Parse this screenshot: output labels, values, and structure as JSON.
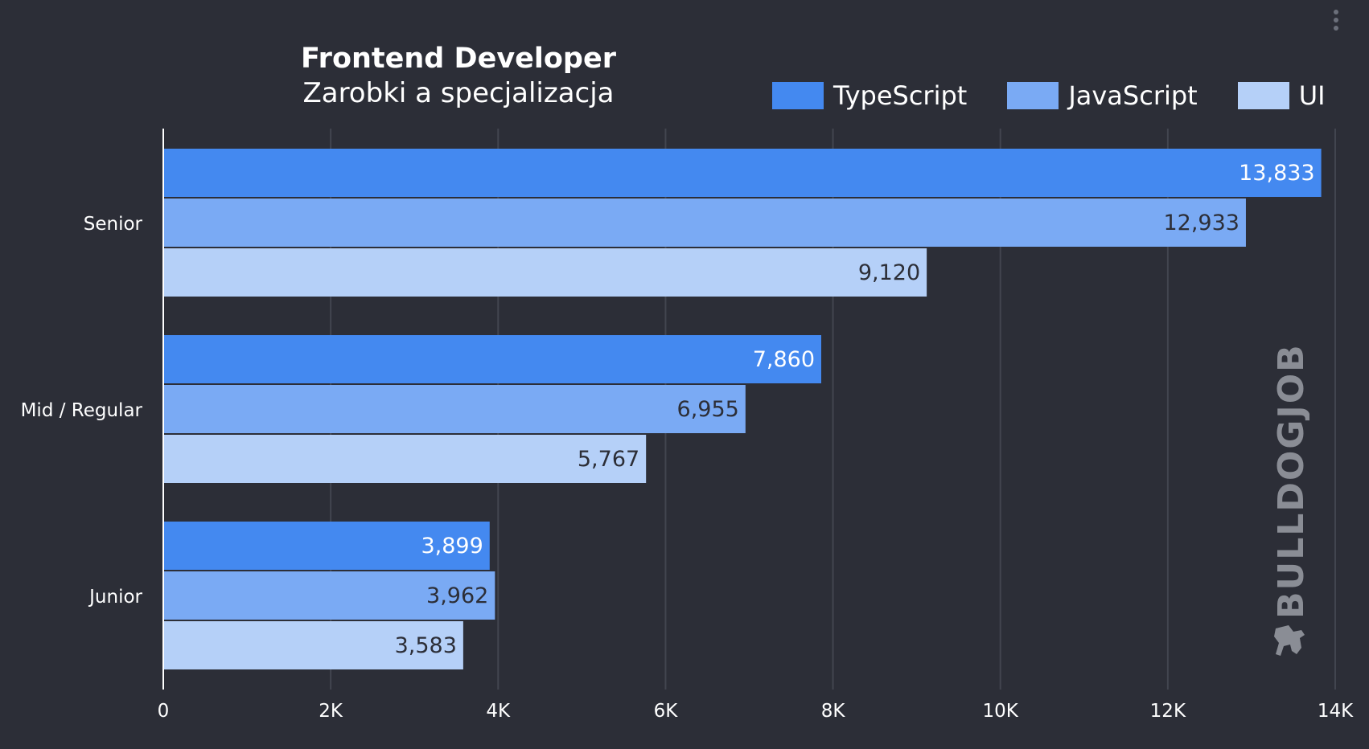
{
  "header": {
    "title": "Frontend Developer",
    "subtitle": "Zarobki a specjalizacja"
  },
  "menu": {
    "icon": "vertical-dots-menu-icon"
  },
  "watermark": {
    "text": "BULLDOGJOB",
    "icon": "bulldog-logo-icon"
  },
  "colors": {
    "background": "#2c2e37",
    "grid": "#42454f",
    "axis": "#ffffff",
    "TypeScript": "#4489f0",
    "JavaScript": "#7aaaf4",
    "UI": "#b5d0f8"
  },
  "chart_data": {
    "type": "bar",
    "orientation": "horizontal",
    "title": "Frontend Developer",
    "subtitle": "Zarobki a specjalizacja",
    "categories": [
      "Senior",
      "Mid / Regular",
      "Junior"
    ],
    "series": [
      {
        "name": "TypeScript",
        "values": [
          13833,
          7860,
          3899
        ],
        "labels": [
          "13,833",
          "7,860",
          "3,899"
        ]
      },
      {
        "name": "JavaScript",
        "values": [
          12933,
          6955,
          3962
        ],
        "labels": [
          "12,933",
          "6,955",
          "3,962"
        ]
      },
      {
        "name": "UI",
        "values": [
          9120,
          5767,
          3583
        ],
        "labels": [
          "9,120",
          "5,767",
          "3,583"
        ]
      }
    ],
    "xlim": [
      0,
      14000
    ],
    "xticks": [
      0,
      2000,
      4000,
      6000,
      8000,
      10000,
      12000,
      14000
    ],
    "xtick_labels": [
      "0",
      "2K",
      "4K",
      "6K",
      "8K",
      "10K",
      "12K",
      "14K"
    ],
    "grid": true,
    "legend_position": "top-right",
    "xlabel": "",
    "ylabel": ""
  }
}
